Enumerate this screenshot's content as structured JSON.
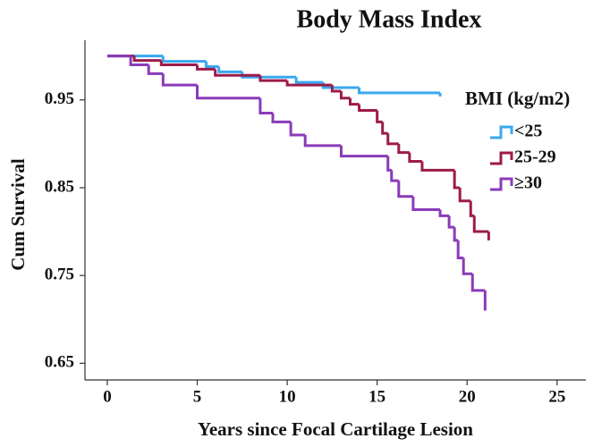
{
  "chart_data": {
    "type": "step",
    "title": "Body Mass Index",
    "x_label": "Years since Focal Cartilage Lesion",
    "y_label": "Cum Survival",
    "legend_title": "BMI  (kg/m2)",
    "legend_position": "right",
    "xlim": [
      -1.24,
      26.6
    ],
    "ylim": [
      0.631,
      1.018
    ],
    "xticks": [
      0,
      5,
      10,
      15,
      20,
      25
    ],
    "yticks": [
      0.65,
      0.75,
      0.85,
      0.95
    ],
    "series": [
      {
        "name": "<25",
        "color": "#3aa8f0",
        "x": [
          0,
          3.1,
          5.5,
          6.2,
          7.5,
          10.5,
          12,
          14,
          18.5
        ],
        "values": [
          1.0,
          0.994,
          0.988,
          0.982,
          0.976,
          0.97,
          0.964,
          0.958,
          0.954
        ]
      },
      {
        "name": "25-29",
        "color": "#9c1c4a",
        "x": [
          0,
          1.5,
          3,
          5,
          6,
          8.5,
          10,
          12.5,
          13,
          13.5,
          14,
          15,
          15.3,
          15.6,
          16.2,
          16.8,
          17.5,
          19.3,
          19.6,
          20.2,
          20.4,
          21.2
        ],
        "values": [
          1.0,
          0.995,
          0.99,
          0.985,
          0.978,
          0.972,
          0.967,
          0.96,
          0.952,
          0.945,
          0.938,
          0.925,
          0.912,
          0.9,
          0.89,
          0.88,
          0.87,
          0.85,
          0.835,
          0.818,
          0.8,
          0.79
        ]
      },
      {
        "name": "≥30",
        "color": "#8a3bb8",
        "x": [
          0,
          1.3,
          2.3,
          3.1,
          5,
          8.5,
          9.2,
          10.2,
          11,
          13,
          15.6,
          15.8,
          16.2,
          17,
          18.5,
          19,
          19.3,
          19.5,
          19.8,
          20.3,
          21
        ],
        "values": [
          1.0,
          0.99,
          0.98,
          0.967,
          0.952,
          0.935,
          0.925,
          0.91,
          0.898,
          0.886,
          0.87,
          0.858,
          0.84,
          0.825,
          0.818,
          0.805,
          0.79,
          0.77,
          0.752,
          0.733,
          0.71
        ]
      }
    ]
  }
}
